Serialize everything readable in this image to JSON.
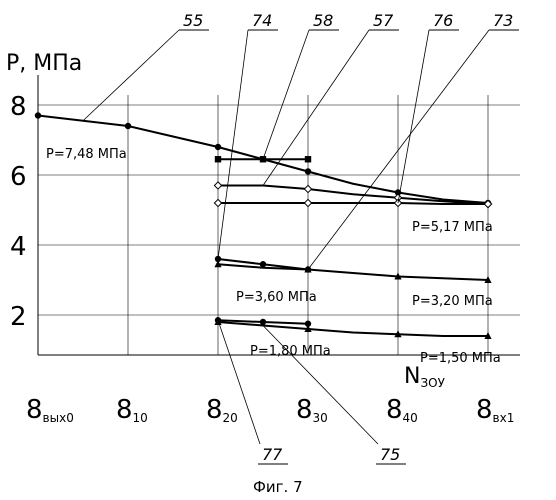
{
  "chart_data": {
    "type": "line",
    "title": "",
    "ylabel": "P, МПа",
    "xlabel": {
      "main": "N",
      "sub": "ЗОУ"
    },
    "caption": "Фиг. 7",
    "ylim": [
      1,
      9
    ],
    "y_ticks": [
      "8",
      "6",
      "4",
      "2"
    ],
    "x_ticks": [
      {
        "main": "8",
        "sub": "вых0"
      },
      {
        "main": "8",
        "sub": "10"
      },
      {
        "main": "8",
        "sub": "20"
      },
      {
        "main": "8",
        "sub": "30"
      },
      {
        "main": "8",
        "sub": "40"
      },
      {
        "main": "8",
        "sub": "вх1"
      }
    ],
    "series": [
      {
        "ref": "55",
        "marker": "circle",
        "x": [
          0,
          0.5,
          1,
          1.5,
          2,
          2.5,
          3,
          3.5,
          4,
          4.5,
          5
        ],
        "y": [
          7.7,
          7.55,
          7.4,
          7.1,
          6.8,
          6.45,
          6.1,
          5.75,
          5.5,
          5.3,
          5.2
        ]
      },
      {
        "ref": "58",
        "marker": "square",
        "x": [
          2,
          2.5,
          3
        ],
        "y": [
          6.45,
          6.45,
          6.45
        ]
      },
      {
        "ref": "57",
        "marker": "diamond",
        "x": [
          2,
          2.5,
          3,
          3.5,
          4,
          4.5,
          5
        ],
        "y": [
          5.7,
          5.7,
          5.6,
          5.45,
          5.35,
          5.25,
          5.17
        ]
      },
      {
        "ref": "76",
        "marker": "diamond",
        "x": [
          2,
          2.5,
          3,
          3.5,
          4,
          4.5,
          5
        ],
        "y": [
          5.2,
          5.2,
          5.2,
          5.2,
          5.2,
          5.17,
          5.17
        ]
      },
      {
        "ref": "74",
        "marker": "circle",
        "x": [
          2,
          2.5,
          3
        ],
        "y": [
          3.6,
          3.45,
          3.3
        ]
      },
      {
        "ref": "73",
        "marker": "triangle",
        "x": [
          2,
          2.5,
          3,
          3.5,
          4,
          4.5,
          5
        ],
        "y": [
          3.45,
          3.35,
          3.3,
          3.2,
          3.1,
          3.05,
          3.0
        ]
      },
      {
        "ref": "77",
        "marker": "circle",
        "x": [
          2,
          2.5,
          3
        ],
        "y": [
          1.85,
          1.8,
          1.75
        ]
      },
      {
        "ref": "75",
        "marker": "triangle",
        "x": [
          2,
          2.5,
          3,
          3.5,
          4,
          4.5,
          5
        ],
        "y": [
          1.8,
          1.7,
          1.6,
          1.5,
          1.45,
          1.4,
          1.4
        ]
      }
    ],
    "annotations": {
      "p748": "P=7,48 МПа",
      "p517": "P=5,17 МПа",
      "p360": "P=3,60 МПа",
      "p320": "P=3,20 МПа",
      "p180": "P=1,80 МПа",
      "p150": "P=1,50 МПа"
    }
  }
}
